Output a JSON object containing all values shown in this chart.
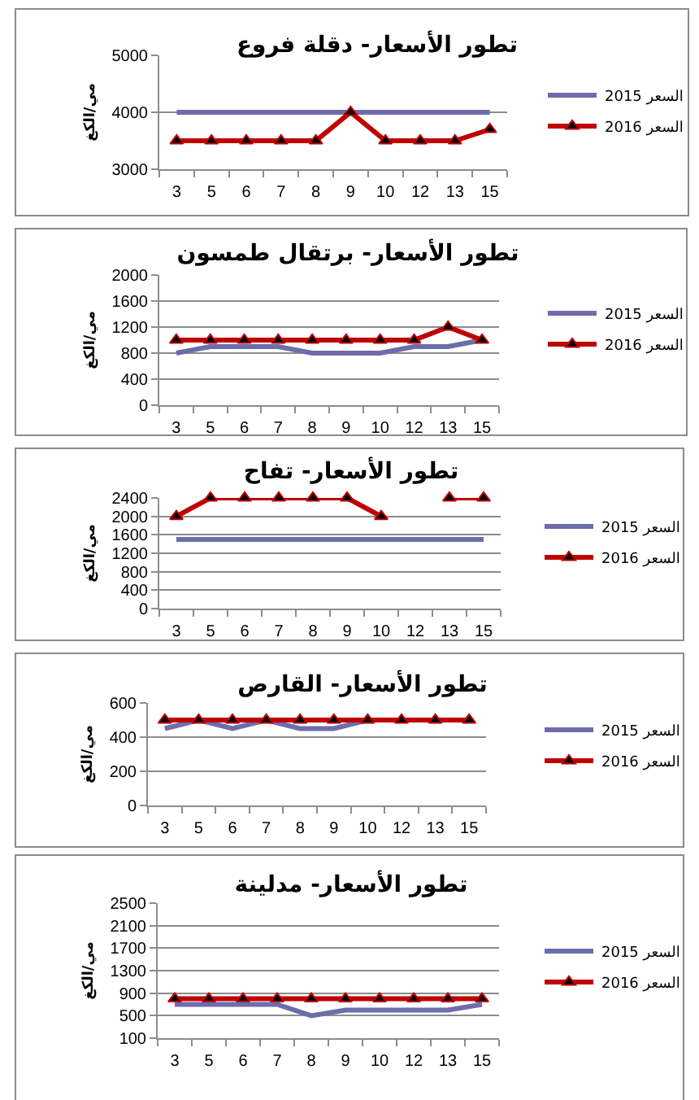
{
  "chart_data": [
    {
      "type": "line",
      "title": "تطور الأسعار- دقلة فروع",
      "ylabel": "مي/الكغ",
      "categories": [
        "3",
        "5",
        "6",
        "7",
        "8",
        "9",
        "10",
        "12",
        "13",
        "15"
      ],
      "series": [
        {
          "name": "السعر 2015",
          "color": "#6d6dab",
          "marker": "none",
          "values": [
            4000,
            4000,
            4000,
            4000,
            4000,
            4000,
            4000,
            4000,
            4000,
            4000
          ]
        },
        {
          "name": "السعر 2016",
          "color": "#c00000",
          "marker": "triangle",
          "values": [
            3500,
            3500,
            3500,
            3500,
            3500,
            4000,
            3500,
            3500,
            3500,
            3700
          ]
        }
      ],
      "ylim": [
        3000,
        5000
      ],
      "yticks": [
        3000,
        4000,
        5000
      ],
      "grid": "y",
      "legend": "right"
    },
    {
      "type": "line",
      "title": "تطور الأسعار- برتقال طمسون",
      "ylabel": "مي/الكغ",
      "categories": [
        "3",
        "5",
        "6",
        "7",
        "8",
        "9",
        "10",
        "12",
        "13",
        "15"
      ],
      "series": [
        {
          "name": "السعر 2015",
          "color": "#6d6dab",
          "marker": "none",
          "values": [
            800,
            900,
            900,
            900,
            800,
            800,
            800,
            900,
            900,
            1000
          ]
        },
        {
          "name": "السعر 2016",
          "color": "#c00000",
          "marker": "triangle",
          "values": [
            1000,
            1000,
            1000,
            1000,
            1000,
            1000,
            1000,
            1000,
            1200,
            1000
          ]
        }
      ],
      "ylim": [
        0,
        2000
      ],
      "yticks": [
        0,
        400,
        800,
        1200,
        1600,
        2000
      ],
      "grid": "y",
      "legend": "right"
    },
    {
      "type": "line",
      "title": "تطور الأسعار- تفاح",
      "ylabel": "مي/الكغ",
      "categories": [
        "3",
        "5",
        "6",
        "7",
        "8",
        "9",
        "10",
        "12",
        "13",
        "15"
      ],
      "series": [
        {
          "name": "السعر 2015",
          "color": "#6d6dab",
          "marker": "none",
          "values": [
            1500,
            1500,
            1500,
            1500,
            1500,
            1500,
            1500,
            1500,
            1500,
            1500
          ]
        },
        {
          "name": "السعر 2016",
          "color": "#c00000",
          "marker": "triangle",
          "values": [
            2000,
            2400,
            2400,
            2400,
            2400,
            2400,
            2000,
            null,
            2400,
            2400
          ]
        }
      ],
      "ylim": [
        0,
        2400
      ],
      "yticks": [
        0,
        400,
        800,
        1200,
        1600,
        2000,
        2400
      ],
      "grid": "y",
      "legend": "right"
    },
    {
      "type": "line",
      "title": "تطور الأسعار- القارص",
      "ylabel": "مي/الكغ",
      "categories": [
        "3",
        "5",
        "6",
        "7",
        "8",
        "9",
        "10",
        "12",
        "13",
        "15"
      ],
      "series": [
        {
          "name": "السعر 2015",
          "color": "#6d6dab",
          "marker": "none",
          "values": [
            450,
            500,
            450,
            500,
            450,
            450,
            500,
            null,
            null,
            null
          ]
        },
        {
          "name": "السعر 2016",
          "color": "#c00000",
          "marker": "triangle",
          "values": [
            500,
            500,
            500,
            500,
            500,
            500,
            500,
            500,
            500,
            500
          ]
        }
      ],
      "ylim": [
        0,
        600
      ],
      "yticks": [
        0,
        200,
        400,
        600
      ],
      "grid": "y",
      "legend": "right"
    },
    {
      "type": "line",
      "title": "تطور الأسعار- مدلينة",
      "ylabel": "مي/الكغ",
      "categories": [
        "3",
        "5",
        "6",
        "7",
        "8",
        "9",
        "10",
        "12",
        "13",
        "15"
      ],
      "series": [
        {
          "name": "السعر 2015",
          "color": "#6d6dab",
          "marker": "none",
          "values": [
            700,
            700,
            700,
            700,
            500,
            600,
            600,
            600,
            600,
            700
          ]
        },
        {
          "name": "السعر 2016",
          "color": "#c00000",
          "marker": "triangle",
          "values": [
            800,
            800,
            800,
            800,
            800,
            800,
            800,
            800,
            800,
            800
          ]
        }
      ],
      "ylim": [
        100,
        2500
      ],
      "yticks": [
        100,
        500,
        900,
        1300,
        1700,
        2100,
        2500
      ],
      "grid": "y",
      "legend": "right"
    }
  ]
}
